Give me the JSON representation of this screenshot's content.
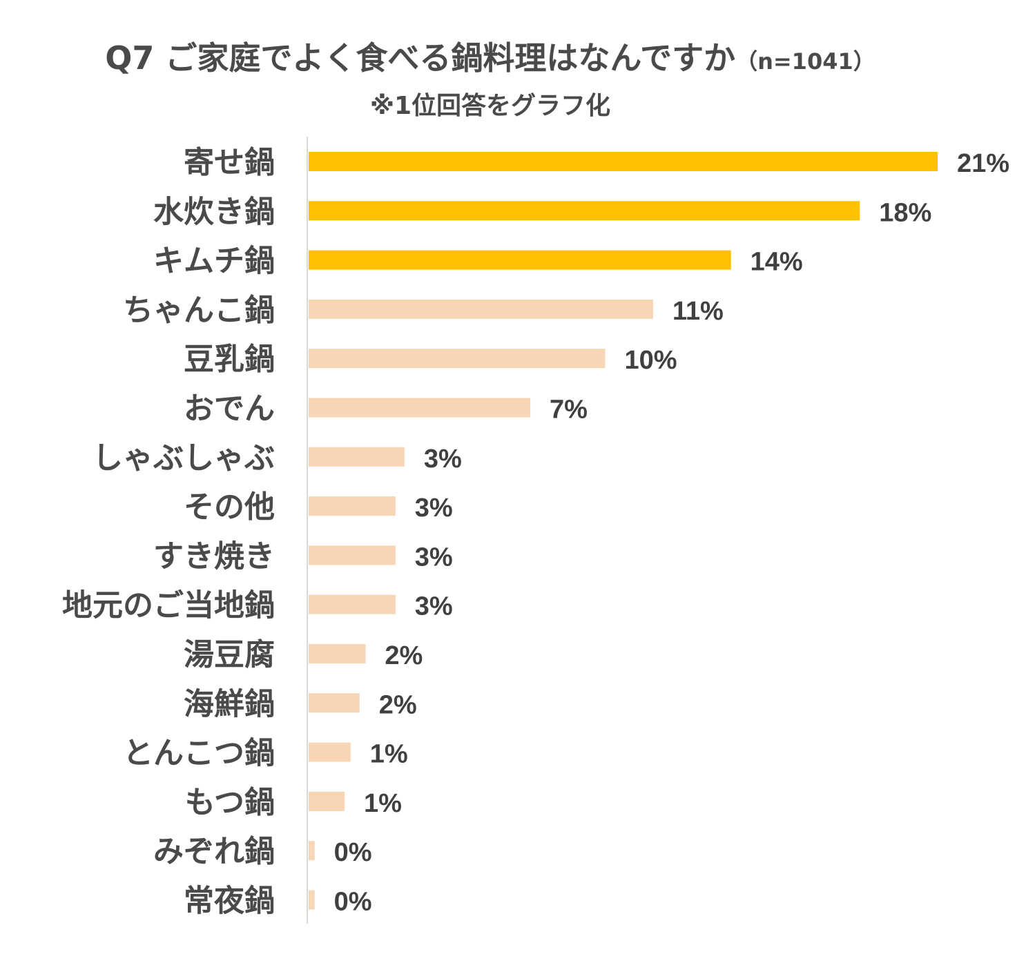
{
  "chart_data": {
    "type": "bar",
    "orientation": "horizontal",
    "title": "Q7 ご家庭でよく食べる鍋料理はなんですか",
    "title_suffix": "（n=1041）",
    "subtitle": "※1位回答をグラフ化",
    "xlabel": "",
    "ylabel": "",
    "grid": false,
    "legend": "none",
    "xlim": [
      0,
      21
    ],
    "categories": [
      "寄せ鍋",
      "水炊き鍋",
      "キムチ鍋",
      "ちゃんこ鍋",
      "豆乳鍋",
      "おでん",
      "しゃぶしゃぶ",
      "その他",
      "すき焼き",
      "地元のご当地鍋",
      "湯豆腐",
      "海鮮鍋",
      "とんこつ鍋",
      "もつ鍋",
      "みぞれ鍋",
      "常夜鍋"
    ],
    "values": [
      21,
      18.4,
      14.1,
      11.5,
      9.9,
      7.4,
      3.2,
      2.9,
      2.9,
      2.9,
      1.9,
      1.7,
      1.4,
      1.2,
      0.2,
      0.2
    ],
    "value_labels": [
      "21%",
      "18%",
      "14%",
      "11%",
      "10%",
      "7%",
      "3%",
      "3%",
      "3%",
      "3%",
      "2%",
      "2%",
      "1%",
      "1%",
      "0%",
      "0%"
    ],
    "highlight_count": 3,
    "colors": {
      "highlight": "#FFC000",
      "normal": "#F8D5B5",
      "axis": "#D9D9D9"
    }
  }
}
